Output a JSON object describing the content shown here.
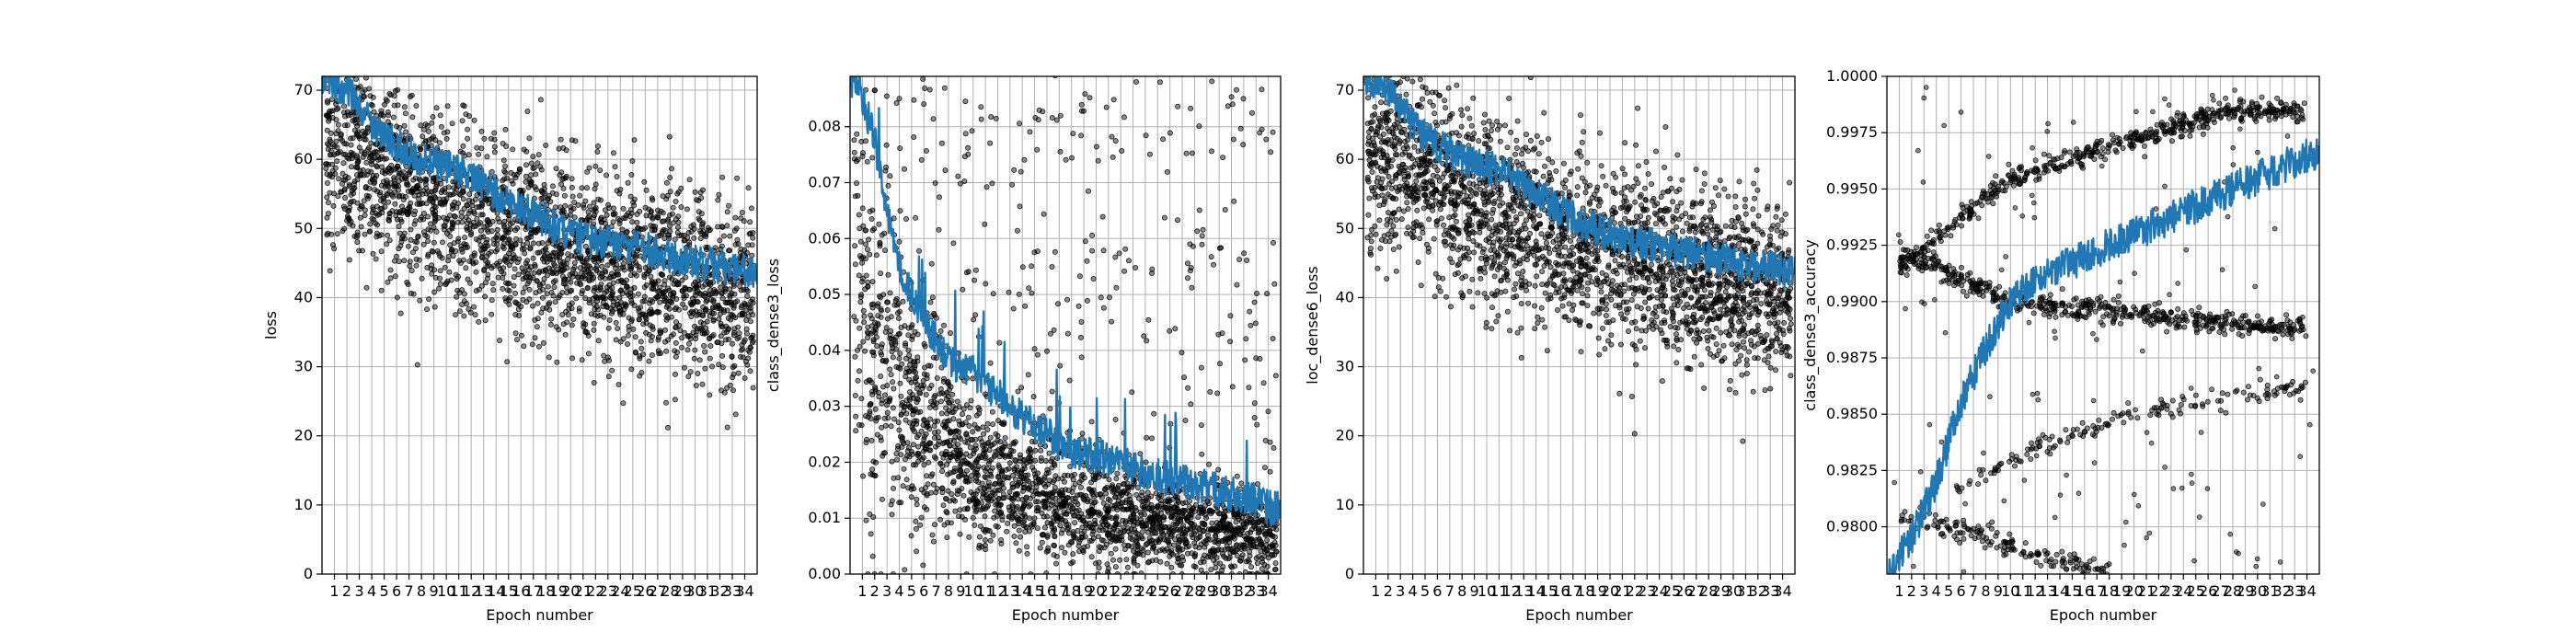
{
  "chart_data": [
    {
      "type": "scatter",
      "xlabel": "Epoch number",
      "ylabel": "loss",
      "x_ticks": [
        "1",
        "2",
        "3",
        "4",
        "5",
        "6",
        "7",
        "8",
        "9",
        "10",
        "11",
        "12",
        "13",
        "14",
        "15",
        "16",
        "17",
        "18",
        "19",
        "20",
        "21",
        "22",
        "23",
        "24",
        "25",
        "26",
        "27",
        "28",
        "29",
        "30",
        "31",
        "32",
        "33",
        "34"
      ],
      "y_ticks": [
        "0",
        "10",
        "20",
        "30",
        "40",
        "50",
        "60",
        "70"
      ],
      "ylim": [
        0,
        72
      ],
      "xlim": [
        0,
        35
      ],
      "grid": true,
      "scatter_trend": [
        {
          "epoch": 1,
          "mean": 62,
          "spread": 9
        },
        {
          "epoch": 5,
          "mean": 58,
          "spread": 9
        },
        {
          "epoch": 10,
          "mean": 53,
          "spread": 9
        },
        {
          "epoch": 15,
          "mean": 49,
          "spread": 9
        },
        {
          "epoch": 20,
          "mean": 46,
          "spread": 9
        },
        {
          "epoch": 25,
          "mean": 44,
          "spread": 9
        },
        {
          "epoch": 30,
          "mean": 42,
          "spread": 9
        },
        {
          "epoch": 34,
          "mean": 40,
          "spread": 8
        }
      ],
      "line_trend": [
        {
          "epoch": 0,
          "value": 72
        },
        {
          "epoch": 2,
          "value": 70
        },
        {
          "epoch": 4,
          "value": 65
        },
        {
          "epoch": 6,
          "value": 62
        },
        {
          "epoch": 8,
          "value": 60
        },
        {
          "epoch": 10,
          "value": 59
        },
        {
          "epoch": 12,
          "value": 58
        },
        {
          "epoch": 14,
          "value": 55
        },
        {
          "epoch": 16,
          "value": 53
        },
        {
          "epoch": 18,
          "value": 51
        },
        {
          "epoch": 20,
          "value": 49
        },
        {
          "epoch": 22,
          "value": 48
        },
        {
          "epoch": 24,
          "value": 47.5
        },
        {
          "epoch": 26,
          "value": 47
        },
        {
          "epoch": 28,
          "value": 46
        },
        {
          "epoch": 30,
          "value": 45
        },
        {
          "epoch": 32,
          "value": 44.5
        },
        {
          "epoch": 34,
          "value": 44
        }
      ]
    },
    {
      "type": "scatter",
      "xlabel": "Epoch number",
      "ylabel": "class_dense3_loss",
      "x_ticks": [
        "1",
        "2",
        "3",
        "4",
        "5",
        "6",
        "7",
        "8",
        "9",
        "10",
        "11",
        "12",
        "13",
        "14",
        "15",
        "16",
        "17",
        "18",
        "19",
        "20",
        "21",
        "22",
        "23",
        "24",
        "25",
        "26",
        "27",
        "28",
        "29",
        "30",
        "31",
        "32",
        "33",
        "34"
      ],
      "y_ticks": [
        "0.00",
        "0.01",
        "0.02",
        "0.03",
        "0.04",
        "0.05",
        "0.06",
        "0.07",
        "0.08"
      ],
      "ylim": [
        0,
        0.089
      ],
      "xlim": [
        0,
        35
      ],
      "grid": true,
      "scatter_trend": [
        {
          "epoch": 1,
          "mean": 0.045,
          "spread": 0.03
        },
        {
          "epoch": 5,
          "mean": 0.03,
          "spread": 0.02
        },
        {
          "epoch": 10,
          "mean": 0.018,
          "spread": 0.012
        },
        {
          "epoch": 15,
          "mean": 0.014,
          "spread": 0.01
        },
        {
          "epoch": 20,
          "mean": 0.011,
          "spread": 0.009
        },
        {
          "epoch": 25,
          "mean": 0.009,
          "spread": 0.008
        },
        {
          "epoch": 30,
          "mean": 0.008,
          "spread": 0.008
        },
        {
          "epoch": 34,
          "mean": 0.007,
          "spread": 0.007
        }
      ],
      "line_trend": [
        {
          "epoch": 0,
          "value": 0.089
        },
        {
          "epoch": 1,
          "value": 0.085
        },
        {
          "epoch": 2,
          "value": 0.078
        },
        {
          "epoch": 3,
          "value": 0.065
        },
        {
          "epoch": 4,
          "value": 0.055
        },
        {
          "epoch": 5,
          "value": 0.05
        },
        {
          "epoch": 6,
          "value": 0.045
        },
        {
          "epoch": 7,
          "value": 0.042
        },
        {
          "epoch": 8,
          "value": 0.038
        },
        {
          "epoch": 10,
          "value": 0.036
        },
        {
          "epoch": 12,
          "value": 0.032
        },
        {
          "epoch": 14,
          "value": 0.028
        },
        {
          "epoch": 16,
          "value": 0.025
        },
        {
          "epoch": 18,
          "value": 0.022
        },
        {
          "epoch": 20,
          "value": 0.021
        },
        {
          "epoch": 22,
          "value": 0.02
        },
        {
          "epoch": 24,
          "value": 0.018
        },
        {
          "epoch": 26,
          "value": 0.017
        },
        {
          "epoch": 28,
          "value": 0.016
        },
        {
          "epoch": 30,
          "value": 0.015
        },
        {
          "epoch": 32,
          "value": 0.014
        },
        {
          "epoch": 34,
          "value": 0.012
        }
      ]
    },
    {
      "type": "scatter",
      "xlabel": "Epoch number",
      "ylabel": "loc_dense6_loss",
      "x_ticks": [
        "1",
        "2",
        "3",
        "4",
        "5",
        "6",
        "7",
        "8",
        "9",
        "10",
        "11",
        "12",
        "13",
        "14",
        "15",
        "16",
        "17",
        "18",
        "19",
        "20",
        "21",
        "22",
        "23",
        "24",
        "25",
        "26",
        "27",
        "28",
        "29",
        "30",
        "31",
        "32",
        "33",
        "34"
      ],
      "y_ticks": [
        "0",
        "10",
        "20",
        "30",
        "40",
        "50",
        "60",
        "70"
      ],
      "ylim": [
        0,
        72
      ],
      "xlim": [
        0,
        35
      ],
      "grid": true,
      "scatter_trend": [
        {
          "epoch": 1,
          "mean": 62,
          "spread": 9
        },
        {
          "epoch": 5,
          "mean": 58,
          "spread": 9
        },
        {
          "epoch": 10,
          "mean": 53,
          "spread": 9
        },
        {
          "epoch": 15,
          "mean": 49,
          "spread": 9
        },
        {
          "epoch": 20,
          "mean": 46,
          "spread": 9
        },
        {
          "epoch": 25,
          "mean": 44,
          "spread": 9
        },
        {
          "epoch": 30,
          "mean": 42,
          "spread": 9
        },
        {
          "epoch": 34,
          "mean": 40,
          "spread": 8
        }
      ],
      "line_trend": [
        {
          "epoch": 0,
          "value": 72
        },
        {
          "epoch": 2,
          "value": 70
        },
        {
          "epoch": 4,
          "value": 65
        },
        {
          "epoch": 6,
          "value": 62
        },
        {
          "epoch": 8,
          "value": 60
        },
        {
          "epoch": 10,
          "value": 59
        },
        {
          "epoch": 12,
          "value": 57.5
        },
        {
          "epoch": 14,
          "value": 55
        },
        {
          "epoch": 16,
          "value": 52.5
        },
        {
          "epoch": 18,
          "value": 50.5
        },
        {
          "epoch": 20,
          "value": 49
        },
        {
          "epoch": 22,
          "value": 48
        },
        {
          "epoch": 24,
          "value": 47.5
        },
        {
          "epoch": 26,
          "value": 46.5
        },
        {
          "epoch": 28,
          "value": 46
        },
        {
          "epoch": 30,
          "value": 45
        },
        {
          "epoch": 32,
          "value": 44.5
        },
        {
          "epoch": 34,
          "value": 44
        }
      ]
    },
    {
      "type": "scatter",
      "xlabel": "Epoch number",
      "ylabel": "class_dense3_accuracy",
      "x_ticks": [
        "1",
        "2",
        "3",
        "4",
        "5",
        "6",
        "7",
        "8",
        "9",
        "10",
        "11",
        "12",
        "13",
        "14",
        "15",
        "16",
        "17",
        "18",
        "19",
        "20",
        "21",
        "22",
        "23",
        "24",
        "25",
        "26",
        "27",
        "28",
        "29",
        "30",
        "31",
        "32",
        "33",
        "34"
      ],
      "y_ticks": [
        "0.9800",
        "0.9825",
        "0.9850",
        "0.9875",
        "0.9900",
        "0.9925",
        "0.9950",
        "0.9975",
        "1.0000"
      ],
      "ylim": [
        0.9779,
        1.0
      ],
      "xlim": [
        0,
        35
      ],
      "grid": true,
      "scatter_bands": [
        {
          "name": "upper",
          "points": [
            {
              "epoch": 1,
              "value": 0.9915
            },
            {
              "epoch": 10,
              "value": 0.9955
            },
            {
              "epoch": 20,
              "value": 0.9972
            },
            {
              "epoch": 28,
              "value": 0.9985
            },
            {
              "epoch": 34,
              "value": 0.9985
            }
          ]
        },
        {
          "name": "middle",
          "points": [
            {
              "epoch": 1,
              "value": 0.9922
            },
            {
              "epoch": 10,
              "value": 0.99
            },
            {
              "epoch": 20,
              "value": 0.9895
            },
            {
              "epoch": 28,
              "value": 0.989
            },
            {
              "epoch": 34,
              "value": 0.9888
            }
          ]
        },
        {
          "name": "lower-rising",
          "points": [
            {
              "epoch": 5,
              "value": 0.9815
            },
            {
              "epoch": 12,
              "value": 0.9835
            },
            {
              "epoch": 20,
              "value": 0.985
            },
            {
              "epoch": 28,
              "value": 0.9858
            },
            {
              "epoch": 34,
              "value": 0.9862
            }
          ]
        },
        {
          "name": "bottom",
          "points": [
            {
              "epoch": 1,
              "value": 0.9805
            },
            {
              "epoch": 8,
              "value": 0.9795
            },
            {
              "epoch": 14,
              "value": 0.9785
            },
            {
              "epoch": 18,
              "value": 0.978
            }
          ]
        }
      ],
      "line_trend": [
        {
          "epoch": 0,
          "value": 0.9779
        },
        {
          "epoch": 2,
          "value": 0.9795
        },
        {
          "epoch": 4,
          "value": 0.982
        },
        {
          "epoch": 6,
          "value": 0.9855
        },
        {
          "epoch": 8,
          "value": 0.988
        },
        {
          "epoch": 10,
          "value": 0.99
        },
        {
          "epoch": 12,
          "value": 0.991
        },
        {
          "epoch": 14,
          "value": 0.9915
        },
        {
          "epoch": 16,
          "value": 0.992
        },
        {
          "epoch": 18,
          "value": 0.9925
        },
        {
          "epoch": 20,
          "value": 0.993
        },
        {
          "epoch": 22,
          "value": 0.9935
        },
        {
          "epoch": 24,
          "value": 0.994
        },
        {
          "epoch": 26,
          "value": 0.9945
        },
        {
          "epoch": 28,
          "value": 0.995
        },
        {
          "epoch": 30,
          "value": 0.9955
        },
        {
          "epoch": 32,
          "value": 0.996
        },
        {
          "epoch": 34,
          "value": 0.9965
        }
      ]
    }
  ],
  "colors": {
    "line": "#1f77b4",
    "scatter": "#000000",
    "grid": "#b0b0b0"
  }
}
